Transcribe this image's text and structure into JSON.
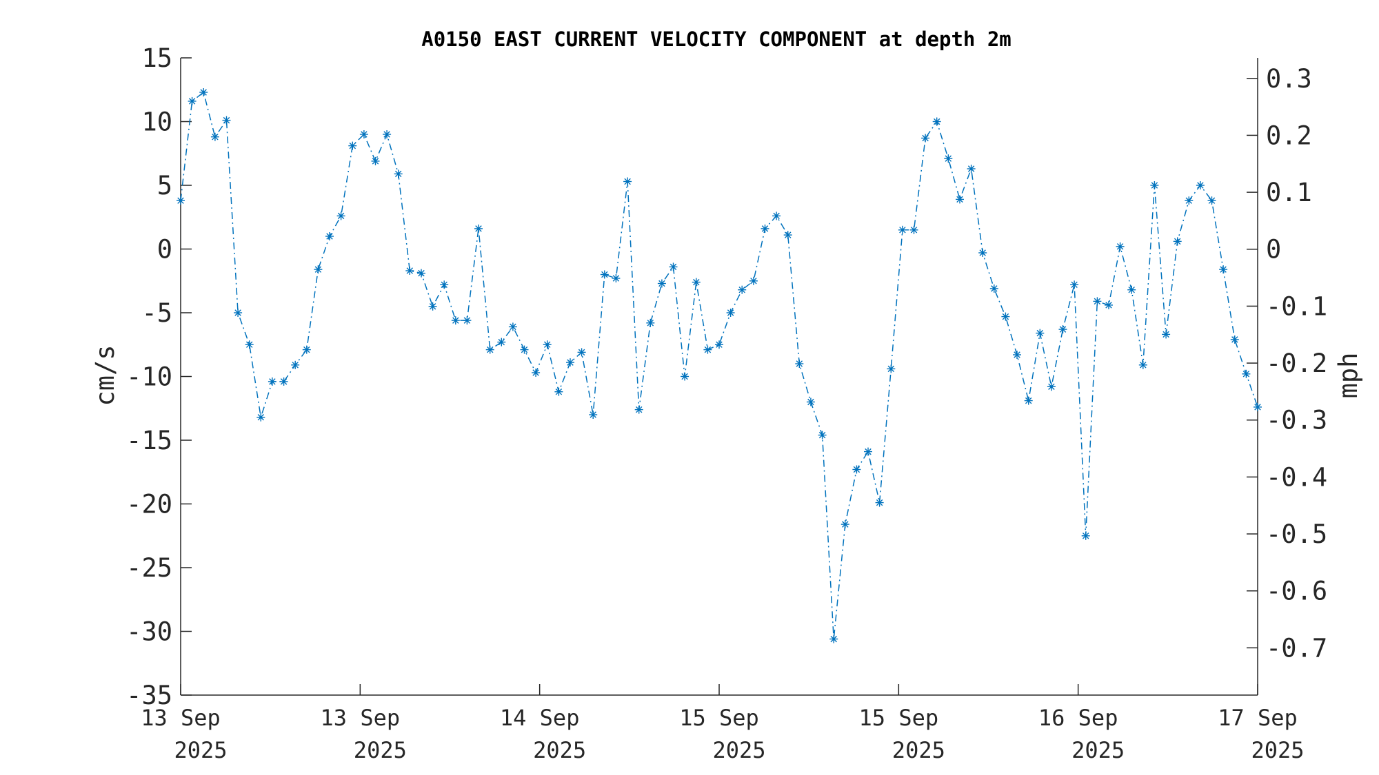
{
  "chart_data": {
    "type": "line",
    "title": "A0150 EAST CURRENT VELOCITY COMPONENT at depth 2m",
    "ylabel": "cm/s",
    "ylabel_right": "mph",
    "ylim": [
      -35,
      15
    ],
    "yticks": [
      "15",
      "10",
      "5",
      "0",
      "-5",
      "-10",
      "-15",
      "-20",
      "-25",
      "-30",
      "-35"
    ],
    "ylim_right": [
      -0.783,
      0.336
    ],
    "yticks_right": [
      "0.3",
      "0.2",
      "0.1",
      "0",
      "-0.1",
      "-0.2",
      "-0.3",
      "-0.4",
      "-0.5",
      "-0.6",
      "-0.7"
    ],
    "xticks": [
      {
        "line1": "13 Sep",
        "line2": "2025"
      },
      {
        "line1": "13 Sep",
        "line2": "2025"
      },
      {
        "line1": "14 Sep",
        "line2": "2025"
      },
      {
        "line1": "15 Sep",
        "line2": "2025"
      },
      {
        "line1": "15 Sep",
        "line2": "2025"
      },
      {
        "line1": "16 Sep",
        "line2": "2025"
      },
      {
        "line1": "17 Sep",
        "line2": "2025"
      }
    ],
    "grid": false,
    "line_style": "dash-dot",
    "marker": "asterisk",
    "series": [
      {
        "color": "#0072BD",
        "values": [
          3.8,
          11.6,
          12.3,
          8.8,
          10.1,
          -5.0,
          -7.5,
          -13.2,
          -10.4,
          -10.4,
          -9.1,
          -7.9,
          -1.6,
          1.0,
          2.6,
          8.1,
          9.0,
          6.9,
          9.0,
          5.9,
          -1.7,
          -1.9,
          -4.5,
          -2.8,
          -5.6,
          -5.6,
          1.6,
          -7.9,
          -7.3,
          -6.1,
          -7.9,
          -9.7,
          -7.5,
          -11.2,
          -8.9,
          -8.1,
          -13.0,
          -2.0,
          -2.3,
          5.3,
          -12.6,
          -5.8,
          -2.7,
          -1.4,
          -10.0,
          -2.6,
          -7.9,
          -7.5,
          -5.0,
          -3.2,
          -2.5,
          1.6,
          2.6,
          1.1,
          -9.0,
          -12.0,
          -14.6,
          -30.6,
          -21.6,
          -17.3,
          -15.9,
          -19.9,
          -9.4,
          1.5,
          1.5,
          8.7,
          10.0,
          7.1,
          3.9,
          6.3,
          -0.3,
          -3.1,
          -5.3,
          -8.3,
          -11.9,
          -6.6,
          -10.8,
          -6.3,
          -2.8,
          -22.5,
          -4.1,
          -4.4,
          0.2,
          -3.2,
          -9.1,
          5.0,
          -6.7,
          0.6,
          3.8,
          5.0,
          3.8,
          -1.6,
          -7.1,
          -9.8,
          -12.4
        ]
      }
    ]
  }
}
